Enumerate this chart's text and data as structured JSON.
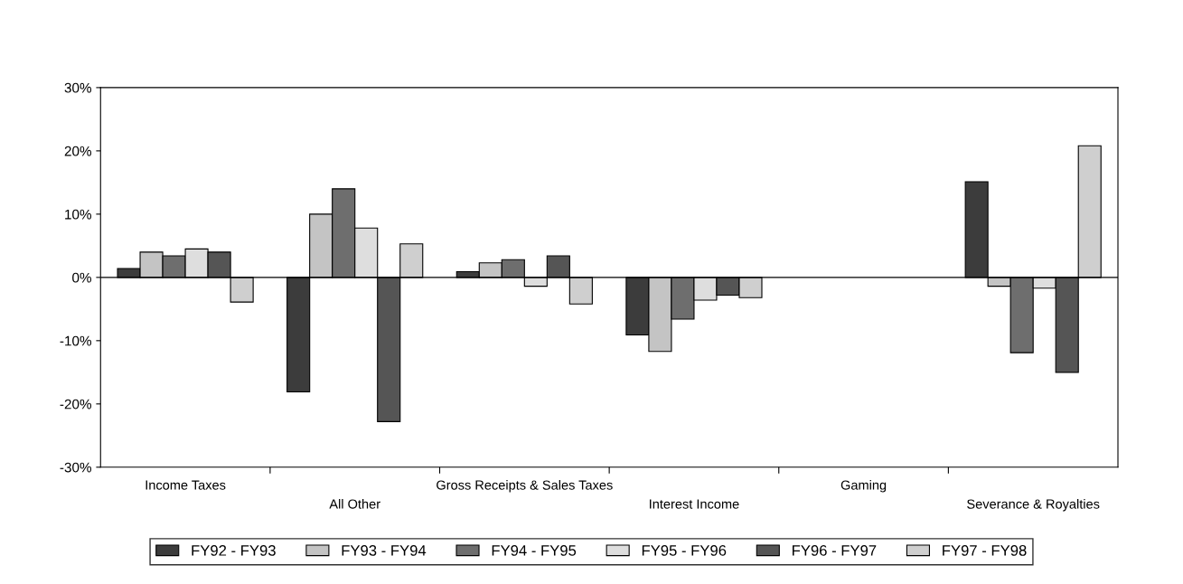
{
  "chart_data": {
    "type": "bar",
    "categories": [
      "Income Taxes",
      "All Other",
      "Gross Receipts & Sales Taxes",
      "Interest Income",
      "Gaming",
      "Severance & Royalties"
    ],
    "series": [
      {
        "name": "FY92 - FY93",
        "color": "#3c3c3c",
        "values": [
          1.4,
          -18.1,
          0.9,
          -9.1,
          null,
          15.1
        ]
      },
      {
        "name": "FY93 - FY94",
        "color": "#c4c4c4",
        "values": [
          4.0,
          10.0,
          2.3,
          -11.7,
          null,
          -1.4
        ]
      },
      {
        "name": "FY94 - FY95",
        "color": "#6e6e6e",
        "values": [
          3.4,
          14.0,
          2.8,
          -6.6,
          null,
          -11.9
        ]
      },
      {
        "name": "FY95 - FY96",
        "color": "#dedede",
        "values": [
          4.5,
          7.8,
          -1.4,
          -3.6,
          null,
          -1.7
        ]
      },
      {
        "name": "FY96 - FY97",
        "color": "#555555",
        "values": [
          4.0,
          -22.8,
          3.4,
          -2.8,
          null,
          -15.0
        ]
      },
      {
        "name": "FY97 - FY98",
        "color": "#cfcfcf",
        "values": [
          -3.9,
          5.3,
          -4.2,
          -3.2,
          null,
          20.8
        ]
      }
    ],
    "ylim": [
      -30,
      30
    ],
    "yticks": [
      {
        "value": -30,
        "label": "-30%"
      },
      {
        "value": -20,
        "label": "-20%"
      },
      {
        "value": -10,
        "label": "-10%"
      },
      {
        "value": 0,
        "label": "0%"
      },
      {
        "value": 10,
        "label": "10%"
      },
      {
        "value": 20,
        "label": "20%"
      },
      {
        "value": 30,
        "label": "30%"
      }
    ],
    "ref_lines": [
      {
        "axis": "y",
        "value": 0,
        "color": "#000000"
      }
    ],
    "grid": false,
    "legend": "bottom"
  }
}
